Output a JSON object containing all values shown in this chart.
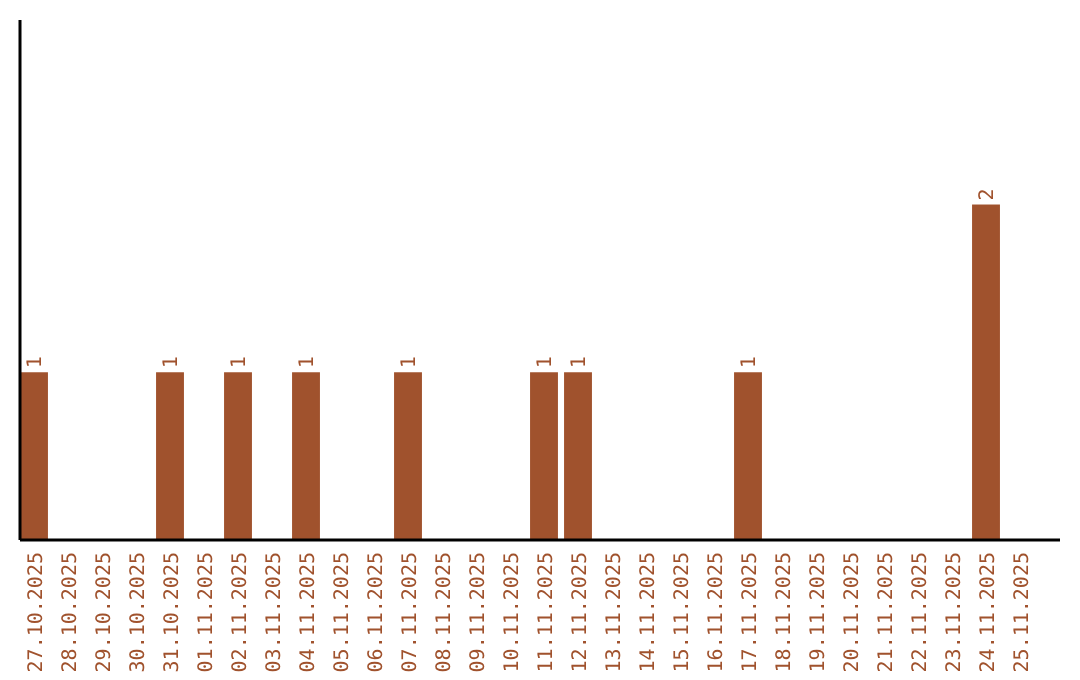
{
  "chart_data": {
    "type": "bar",
    "categories": [
      "27.10.2025",
      "28.10.2025",
      "29.10.2025",
      "30.10.2025",
      "31.10.2025",
      "01.11.2025",
      "02.11.2025",
      "03.11.2025",
      "04.11.2025",
      "05.11.2025",
      "06.11.2025",
      "07.11.2025",
      "08.11.2025",
      "09.11.2025",
      "10.11.2025",
      "11.11.2025",
      "12.11.2025",
      "13.11.2025",
      "14.11.2025",
      "15.11.2025",
      "16.11.2025",
      "17.11.2025",
      "18.11.2025",
      "19.11.2025",
      "20.11.2025",
      "21.11.2025",
      "22.11.2025",
      "23.11.2025",
      "24.11.2025",
      "25.11.2025"
    ],
    "values": [
      1,
      0,
      0,
      0,
      1,
      0,
      1,
      0,
      1,
      0,
      0,
      1,
      0,
      0,
      0,
      1,
      1,
      0,
      0,
      0,
      0,
      1,
      0,
      0,
      0,
      0,
      0,
      0,
      2,
      0
    ],
    "value_labels": [
      "1",
      null,
      null,
      null,
      "1",
      null,
      "1",
      null,
      "1",
      null,
      null,
      "1",
      null,
      null,
      null,
      "1",
      "1",
      null,
      null,
      null,
      null,
      "1",
      null,
      null,
      null,
      null,
      null,
      null,
      "2",
      null
    ],
    "color": "#a0522d",
    "ylim": [
      0,
      3.1
    ],
    "tick_labels": "x",
    "grid": false
  }
}
